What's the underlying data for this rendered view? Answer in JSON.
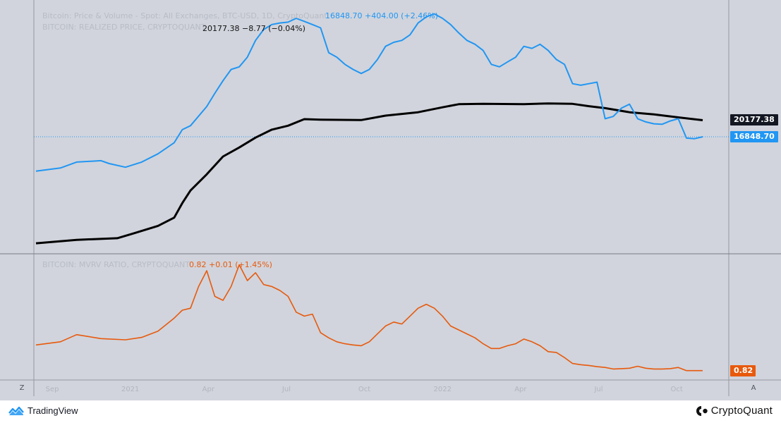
{
  "legend": {
    "line1_faint": "Bitcoin: Price & Volume - Spot: All Exchanges, BTC-USD, 1D, CryptoQuant",
    "line2_faint": "BITCOIN: REALIZED PRICE, CRYPTOQUANT",
    "line3_faint": "BITCOIN: MVRV RATIO, CRYPTOQUANT"
  },
  "readouts": {
    "blue": "16848.70  +404.00 (+2.46%)",
    "black": "20177.38  −8.77 (−0.04%)",
    "orange": "0.82  +0.01 (+1.45%)"
  },
  "price_tags": {
    "black": "20177.38",
    "blue": "16848.70",
    "orange": "0.82"
  },
  "corner_buttons": {
    "left": "Z",
    "right": "A"
  },
  "footer": {
    "left_brand": "TradingView",
    "right_brand": "CryptoQuant"
  },
  "colors": {
    "background": "#d1d4dc",
    "price_line": "#2196f3",
    "realized_line": "#000000",
    "mvrv_line": "#e8590c"
  },
  "chart_data": [
    {
      "type": "line",
      "panel": "top",
      "scale": "log",
      "x_tick_labels": [
        "Sep",
        "2021",
        "Apr",
        "Jul",
        "Oct",
        "2022",
        "Apr",
        "Jul",
        "Oct"
      ],
      "series": [
        {
          "role": "price",
          "color": "#2196f3",
          "last": 16848.7,
          "points": [
            [
              0,
              11600
            ],
            [
              3,
              12000
            ],
            [
              5,
              12800
            ],
            [
              8,
              13000
            ],
            [
              9,
              12600
            ],
            [
              11,
              12100
            ],
            [
              13,
              12800
            ],
            [
              15,
              14000
            ],
            [
              17,
              15800
            ],
            [
              18,
              18200
            ],
            [
              19,
              19000
            ],
            [
              21,
              23400
            ],
            [
              22,
              27000
            ],
            [
              23,
              31000
            ],
            [
              24,
              35000
            ],
            [
              25,
              36000
            ],
            [
              26,
              40000
            ],
            [
              27,
              48000
            ],
            [
              28,
              54000
            ],
            [
              29,
              57000
            ],
            [
              30,
              58000
            ],
            [
              31,
              58500
            ],
            [
              32,
              61000
            ],
            [
              33,
              59000
            ],
            [
              34,
              57000
            ],
            [
              35,
              55000
            ],
            [
              36,
              42000
            ],
            [
              37,
              40000
            ],
            [
              38,
              37000
            ],
            [
              39,
              35000
            ],
            [
              40,
              33500
            ],
            [
              41,
              35000
            ],
            [
              42,
              39000
            ],
            [
              43,
              45000
            ],
            [
              44,
              47000
            ],
            [
              45,
              48000
            ],
            [
              46,
              51000
            ],
            [
              47,
              58000
            ],
            [
              48,
              62000
            ],
            [
              49,
              64000
            ],
            [
              50,
              61000
            ],
            [
              51,
              57000
            ],
            [
              52,
              52000
            ],
            [
              53,
              48000
            ],
            [
              54,
              46000
            ],
            [
              55,
              43000
            ],
            [
              56,
              37000
            ],
            [
              57,
              36000
            ],
            [
              58,
              38000
            ],
            [
              59,
              40000
            ],
            [
              60,
              45000
            ],
            [
              61,
              44000
            ],
            [
              62,
              46000
            ],
            [
              63,
              43000
            ],
            [
              64,
              39000
            ],
            [
              65,
              37000
            ],
            [
              66,
              30000
            ],
            [
              67,
              29500
            ],
            [
              68,
              30000
            ],
            [
              69,
              30500
            ],
            [
              70,
              20500
            ],
            [
              71,
              21000
            ],
            [
              72,
              23000
            ],
            [
              73,
              24000
            ],
            [
              74,
              20500
            ],
            [
              75,
              19800
            ],
            [
              76,
              19400
            ],
            [
              77,
              19300
            ],
            [
              78,
              20000
            ],
            [
              79,
              20500
            ],
            [
              80,
              16600
            ],
            [
              81,
              16500
            ],
            [
              82,
              16848.7
            ]
          ]
        },
        {
          "role": "realized_price",
          "color": "#000000",
          "last": 20177.38,
          "points": [
            [
              0,
              5300
            ],
            [
              5,
              5500
            ],
            [
              10,
              5600
            ],
            [
              12,
              5900
            ],
            [
              15,
              6400
            ],
            [
              17,
              7000
            ],
            [
              18,
              8200
            ],
            [
              19,
              9400
            ],
            [
              21,
              11200
            ],
            [
              23,
              13600
            ],
            [
              25,
              15000
            ],
            [
              27,
              16700
            ],
            [
              29,
              18200
            ],
            [
              31,
              19000
            ],
            [
              33,
              20400
            ],
            [
              35,
              20300
            ],
            [
              40,
              20200
            ],
            [
              43,
              21200
            ],
            [
              47,
              22000
            ],
            [
              50,
              23200
            ],
            [
              52,
              24000
            ],
            [
              55,
              24100
            ],
            [
              60,
              24000
            ],
            [
              63,
              24200
            ],
            [
              66,
              24100
            ],
            [
              68,
              23500
            ],
            [
              70,
              23000
            ],
            [
              73,
              22000
            ],
            [
              76,
              21500
            ],
            [
              79,
              20800
            ],
            [
              82,
              20177.38
            ]
          ]
        }
      ]
    },
    {
      "type": "line",
      "panel": "bottom",
      "series": [
        {
          "role": "mvrv",
          "color": "#e8590c",
          "last": 0.82,
          "points": [
            [
              0,
              1.47
            ],
            [
              3,
              1.55
            ],
            [
              5,
              1.73
            ],
            [
              8,
              1.63
            ],
            [
              11,
              1.6
            ],
            [
              13,
              1.66
            ],
            [
              15,
              1.82
            ],
            [
              17,
              2.15
            ],
            [
              18,
              2.35
            ],
            [
              19,
              2.4
            ],
            [
              20,
              2.95
            ],
            [
              21,
              3.35
            ],
            [
              22,
              2.7
            ],
            [
              23,
              2.6
            ],
            [
              24,
              2.95
            ],
            [
              25,
              3.5
            ],
            [
              26,
              3.1
            ],
            [
              27,
              3.3
            ],
            [
              28,
              3.0
            ],
            [
              29,
              2.95
            ],
            [
              30,
              2.85
            ],
            [
              31,
              2.7
            ],
            [
              32,
              2.3
            ],
            [
              33,
              2.2
            ],
            [
              34,
              2.25
            ],
            [
              35,
              1.78
            ],
            [
              36,
              1.65
            ],
            [
              37,
              1.55
            ],
            [
              38,
              1.5
            ],
            [
              39,
              1.47
            ],
            [
              40,
              1.45
            ],
            [
              41,
              1.55
            ],
            [
              42,
              1.75
            ],
            [
              43,
              1.95
            ],
            [
              44,
              2.05
            ],
            [
              45,
              2.0
            ],
            [
              46,
              2.2
            ],
            [
              47,
              2.4
            ],
            [
              48,
              2.5
            ],
            [
              49,
              2.4
            ],
            [
              50,
              2.2
            ],
            [
              51,
              1.95
            ],
            [
              52,
              1.85
            ],
            [
              53,
              1.75
            ],
            [
              54,
              1.65
            ],
            [
              55,
              1.5
            ],
            [
              56,
              1.38
            ],
            [
              57,
              1.38
            ],
            [
              58,
              1.45
            ],
            [
              59,
              1.5
            ],
            [
              60,
              1.62
            ],
            [
              61,
              1.55
            ],
            [
              62,
              1.45
            ],
            [
              63,
              1.3
            ],
            [
              64,
              1.28
            ],
            [
              65,
              1.15
            ],
            [
              66,
              1.0
            ],
            [
              67,
              0.97
            ],
            [
              68,
              0.95
            ],
            [
              69,
              0.92
            ],
            [
              70,
              0.9
            ],
            [
              71,
              0.86
            ],
            [
              72,
              0.87
            ],
            [
              73,
              0.88
            ],
            [
              74,
              0.93
            ],
            [
              75,
              0.88
            ],
            [
              76,
              0.86
            ],
            [
              77,
              0.86
            ],
            [
              78,
              0.87
            ],
            [
              79,
              0.9
            ],
            [
              80,
              0.82
            ],
            [
              81,
              0.82
            ],
            [
              82,
              0.82
            ]
          ]
        }
      ]
    }
  ]
}
